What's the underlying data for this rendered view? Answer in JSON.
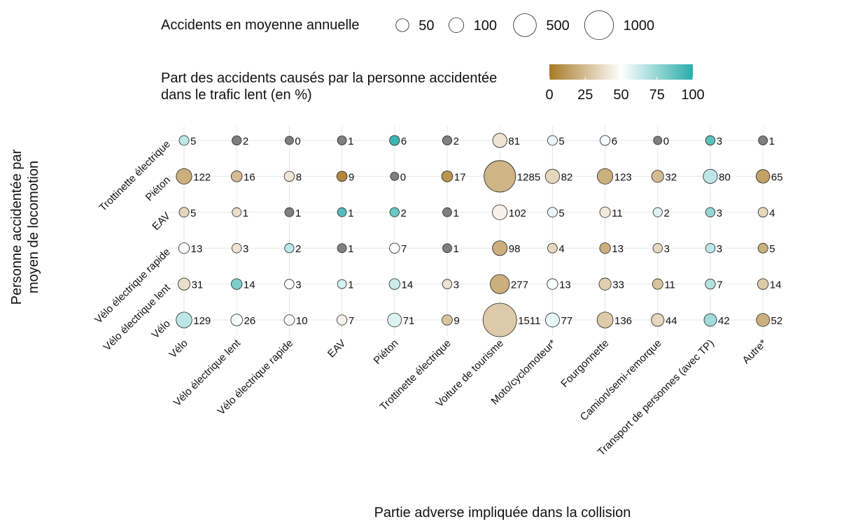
{
  "chart_data": {
    "type": "bubble",
    "x_title": "Partie adverse impliquée dans la collision",
    "y_title": [
      "Personne accidentée par",
      "moyen de locomotion"
    ],
    "categories": [
      "Vélo",
      "Vélo électrique lent",
      "Vélo électrique rapide",
      "EAV",
      "Piéton",
      "Trottinette électrique",
      "Voiture de tourisme",
      "Moto/cyclomoteur*",
      "Fourgonnette",
      "Camion/semi-remorque",
      "Transport de personnes (avec TP)",
      "Autre*"
    ],
    "rows": [
      {
        "name": "Trottinette électrique",
        "values": [
          5,
          2,
          0,
          1,
          6,
          2,
          81,
          5,
          6,
          0,
          3,
          1
        ],
        "shares": [
          65,
          null,
          null,
          null,
          95,
          null,
          40,
          55,
          52,
          null,
          88,
          null
        ]
      },
      {
        "name": "Piéton",
        "values": [
          122,
          16,
          8,
          9,
          0,
          17,
          1285,
          82,
          123,
          32,
          80,
          65
        ],
        "shares": [
          20,
          25,
          40,
          5,
          null,
          10,
          22,
          35,
          20,
          25,
          65,
          15
        ]
      },
      {
        "name": "EAV",
        "values": [
          5,
          1,
          1,
          1,
          2,
          1,
          102,
          5,
          11,
          2,
          3,
          4
        ],
        "shares": [
          35,
          38,
          null,
          90,
          85,
          null,
          45,
          55,
          42,
          58,
          75,
          35
        ]
      },
      {
        "name": "Vélo électrique rapide",
        "values": [
          13,
          3,
          2,
          1,
          7,
          1,
          98,
          4,
          13,
          3,
          3,
          5
        ],
        "shares": [
          48,
          40,
          65,
          null,
          50,
          null,
          20,
          35,
          20,
          35,
          65,
          20
        ]
      },
      {
        "name": "Vélo électrique lent",
        "values": [
          31,
          14,
          3,
          1,
          14,
          3,
          277,
          13,
          33,
          11,
          7,
          14
        ],
        "shares": [
          38,
          80,
          50,
          60,
          62,
          40,
          20,
          52,
          32,
          28,
          68,
          30
        ]
      },
      {
        "name": "Vélo",
        "values": [
          129,
          26,
          10,
          7,
          71,
          9,
          1511,
          77,
          136,
          44,
          42,
          52
        ],
        "shares": [
          65,
          53,
          50,
          45,
          58,
          28,
          30,
          55,
          30,
          35,
          72,
          20
        ]
      }
    ],
    "size_legend": {
      "title": "Accidents en moyenne annuelle",
      "values": [
        50,
        100,
        500,
        1000
      ]
    },
    "color_legend": {
      "title": [
        "Part des accidents causés par la personne accidentée",
        "dans le trafic lent (en %)"
      ],
      "lim": [
        0,
        100
      ],
      "ticks": [
        0,
        25,
        50,
        75,
        100
      ],
      "colors": [
        "#a87a26",
        "#ffffff",
        "#2aadaa"
      ],
      "na_color": "#7f7f7f"
    },
    "grid": true
  }
}
